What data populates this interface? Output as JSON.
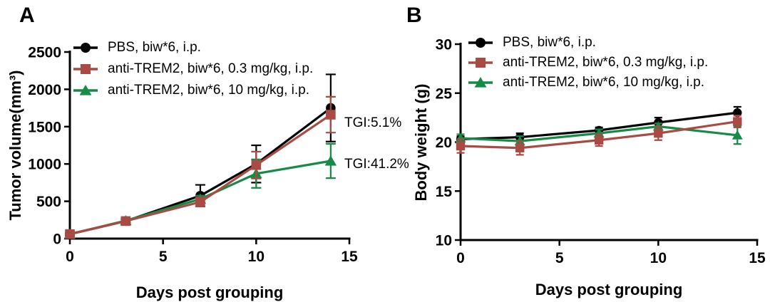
{
  "figure": {
    "background": "#ffffff",
    "text_color": "#000000"
  },
  "chart_data": [
    {
      "id": "tumor-volume-plot",
      "type": "line",
      "panel_label": "A",
      "xlabel": "Days post grouping",
      "ylabel": "Tumor volume(mm³)",
      "x": [
        0,
        3,
        7,
        10,
        14
      ],
      "xlim": [
        0,
        15
      ],
      "xticks": [
        0,
        5,
        10,
        15
      ],
      "ylim": [
        0,
        2500
      ],
      "yticks": [
        0,
        500,
        1000,
        1500,
        2000,
        2500
      ],
      "grid": false,
      "legend_position": "top-left-inside",
      "error_bars": "sd",
      "series": [
        {
          "name": "PBS, biw*6, i.p.",
          "color": "#000000",
          "marker": "circle",
          "values": [
            60,
            235,
            575,
            1000,
            1750
          ],
          "errors": [
            15,
            25,
            145,
            250,
            450
          ]
        },
        {
          "name": "anti-TREM2, biw*6, 0.3 mg/kg, i.p.",
          "color": "#A94B45",
          "marker": "square",
          "values": [
            60,
            235,
            490,
            985,
            1660
          ],
          "errors": [
            15,
            25,
            60,
            180,
            240
          ]
        },
        {
          "name": "anti-TREM2, biw*6, 10 mg/kg, i.p.",
          "color": "#178A46",
          "marker": "triangle",
          "values": [
            60,
            240,
            530,
            870,
            1040
          ],
          "errors": [
            15,
            25,
            45,
            190,
            230
          ]
        }
      ],
      "annotations": [
        {
          "text": "TGI:5.1%",
          "refers_to": "anti-TREM2, biw*6, 0.3 mg/kg, i.p."
        },
        {
          "text": "TGI:41.2%",
          "refers_to": "anti-TREM2, biw*6, 10 mg/kg, i.p."
        }
      ]
    },
    {
      "id": "body-weight-plot",
      "type": "line",
      "panel_label": "B",
      "xlabel": "Days post grouping",
      "ylabel": "Body weight (g)",
      "x": [
        0,
        3,
        7,
        10,
        14
      ],
      "xlim": [
        0,
        15
      ],
      "xticks": [
        0,
        5,
        10,
        15
      ],
      "ylim": [
        10,
        30
      ],
      "yticks": [
        10,
        15,
        20,
        25,
        30
      ],
      "grid": false,
      "legend_position": "top-left-inside",
      "error_bars": "sd",
      "series": [
        {
          "name": "PBS, biw*6, i.p.",
          "color": "#000000",
          "marker": "circle",
          "values": [
            20.3,
            20.5,
            21.2,
            22.0,
            23.0
          ],
          "errors": [
            0.3,
            0.4,
            0.3,
            0.5,
            0.6
          ]
        },
        {
          "name": "anti-TREM2, biw*6, 0.3 mg/kg, i.p.",
          "color": "#A94B45",
          "marker": "square",
          "values": [
            19.6,
            19.4,
            20.2,
            20.9,
            22.1
          ],
          "errors": [
            0.7,
            0.7,
            0.6,
            0.7,
            0.6
          ]
        },
        {
          "name": "anti-TREM2, biw*6, 10 mg/kg, i.p.",
          "color": "#178A46",
          "marker": "triangle",
          "values": [
            20.4,
            20.1,
            20.9,
            21.6,
            20.7
          ],
          "errors": [
            0.4,
            0.5,
            0.4,
            0.3,
            0.9
          ]
        }
      ],
      "annotations": []
    }
  ]
}
